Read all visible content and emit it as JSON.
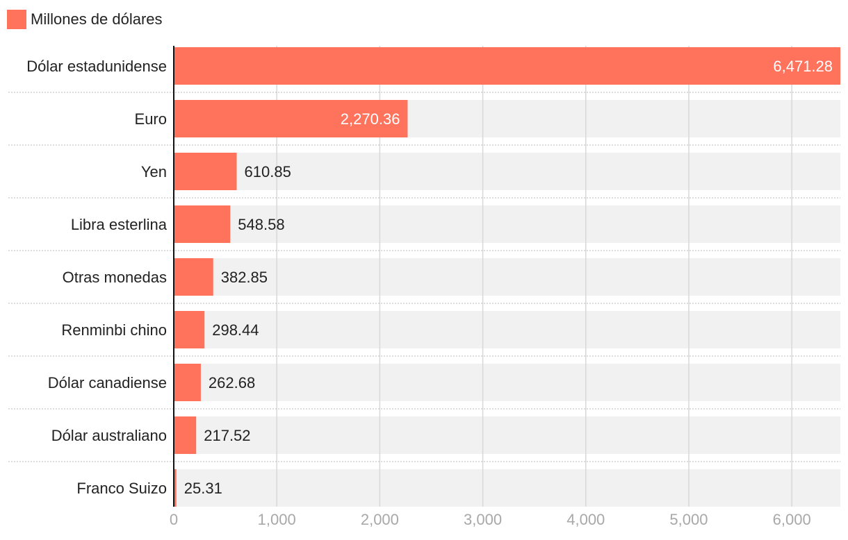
{
  "colors": {
    "bar": "#ff735d",
    "track": "#f1f1f1",
    "gridline": "#d8d8d8",
    "separator": "#c8c8c8",
    "axis": "#111111",
    "category_text": "#222222",
    "value_text_outside": "#222222",
    "value_text_inside": "#ffffff",
    "tick_text": "#a8a8a8"
  },
  "chart_data": {
    "type": "bar",
    "orientation": "horizontal",
    "title": "",
    "xlabel": "",
    "ylabel": "",
    "legend": {
      "position": "top-left",
      "entries": [
        "Millones de dólares"
      ]
    },
    "categories": [
      "Dólar estadunidense",
      "Euro",
      "Yen",
      "Libra esterlina",
      "Otras monedas",
      "Renminbi chino",
      "Dólar canadiense",
      "Dólar australiano",
      "Franco Suizo"
    ],
    "series": [
      {
        "name": "Millones de dólares",
        "values": [
          6471.28,
          2270.36,
          610.85,
          548.58,
          382.85,
          298.44,
          262.68,
          217.52,
          25.31
        ]
      }
    ],
    "value_labels": [
      "6,471.28",
      "2,270.36",
      "610.85",
      "548.58",
      "382.85",
      "298.44",
      "262.68",
      "217.52",
      "25.31"
    ],
    "xlim": [
      0,
      6471.28
    ],
    "xticks": [
      0,
      1000,
      2000,
      3000,
      4000,
      5000,
      6000
    ],
    "xtick_labels": [
      "0",
      "1,000",
      "2,000",
      "3,000",
      "4,000",
      "5,000",
      "6,000"
    ],
    "grid": true
  }
}
